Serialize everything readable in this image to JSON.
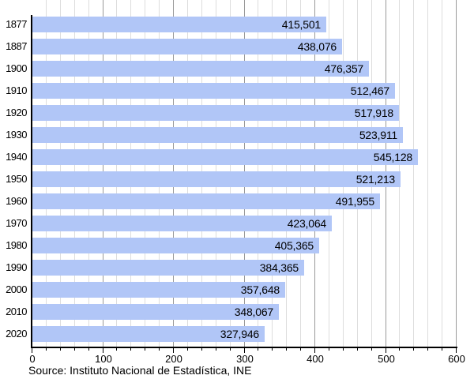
{
  "chart_data": {
    "type": "bar",
    "orientation": "horizontal",
    "title": "",
    "xlabel": "",
    "ylabel": "",
    "categories": [
      "1877",
      "1887",
      "1900",
      "1910",
      "1920",
      "1930",
      "1940",
      "1950",
      "1960",
      "1970",
      "1980",
      "1990",
      "2000",
      "2010",
      "2020"
    ],
    "values": [
      415501,
      438076,
      476357,
      512467,
      517918,
      523911,
      545128,
      521213,
      491955,
      423064,
      405365,
      384365,
      357648,
      348067,
      327946
    ],
    "value_labels": [
      "415,501",
      "438,076",
      "476,357",
      "512,467",
      "517,918",
      "523,911",
      "545,128",
      "521,213",
      "491,955",
      "423,064",
      "405,365",
      "384,365",
      "357,648",
      "348,067",
      "327,946"
    ],
    "xlim": [
      0,
      600000
    ],
    "x_tick_values": [
      0,
      100000,
      200000,
      300000,
      400000,
      500000,
      600000
    ],
    "x_tick_labels": [
      "0",
      "100",
      "200",
      "300",
      "400",
      "500",
      "600"
    ],
    "minor_grid_step": 20000,
    "major_grid_step": 100000,
    "grid": true,
    "legend": false,
    "source_note": "Source: Instituto Nacional de Estadística, INE"
  },
  "colors": {
    "background": "#ffffff",
    "bar_fill": "#b1c6f7",
    "major_grid": "#999999",
    "minor_grid": "#dddddd",
    "axis": "#000000",
    "text": "#000000"
  }
}
